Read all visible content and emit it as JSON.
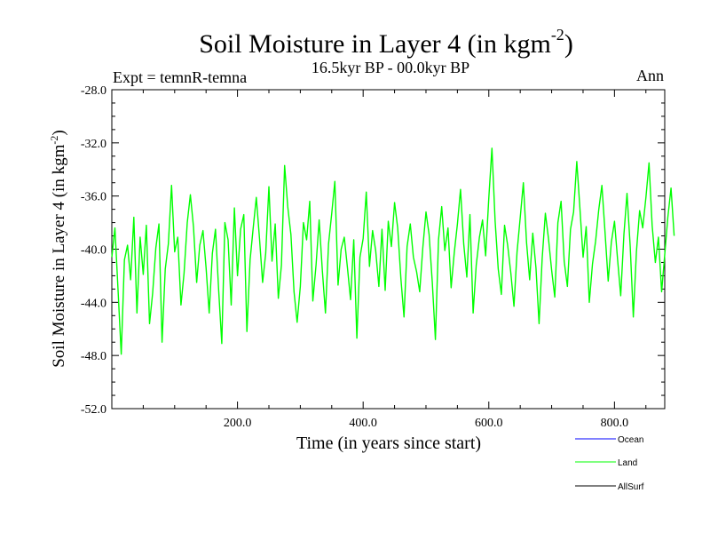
{
  "header": {
    "title": "Soil Moisture in Layer 4 (in kgm",
    "title_sup": "-2",
    "title_close": ")",
    "subtitle": "16.5kyr BP - 00.0kyr BP",
    "experiment": "Expt = temnR-temna",
    "season": "Ann"
  },
  "colors": {
    "ocean": "#0000ff",
    "land": "#00ff00",
    "allsurf": "#000000"
  },
  "chart_data": {
    "type": "line",
    "title": "Soil Moisture in Layer 4 (in kgm-2)",
    "xlabel": "Time (in years since start)",
    "ylabel": "Soil Moisture in Layer 4 (in kgm-2)",
    "xlim": [
      0,
      880
    ],
    "ylim": [
      -52,
      -28
    ],
    "x_ticks": [
      200,
      400,
      600,
      800
    ],
    "x_tick_labels": [
      "200.0",
      "400.0",
      "600.0",
      "800.0"
    ],
    "y_ticks": [
      -28,
      -32,
      -36,
      -40,
      -44,
      -48,
      -52
    ],
    "y_tick_labels": [
      "-28.0",
      "-32.0",
      "-36.0",
      "-40.0",
      "-44.0",
      "-48.0",
      "-52.0"
    ],
    "legend_position": "bottom-right",
    "legend": [
      "Ocean",
      "Land",
      "AllSurf"
    ],
    "series": [
      {
        "name": "Land",
        "x_start": 0,
        "x_step": 5,
        "values": [
          -40.6,
          -38.4,
          -43.2,
          -47.9,
          -40.8,
          -39.7,
          -42.3,
          -37.6,
          -44.8,
          -39.1,
          -41.9,
          -38.2,
          -45.6,
          -43.3,
          -39.9,
          -38.1,
          -47.0,
          -41.5,
          -39.6,
          -35.2,
          -40.2,
          -39.1,
          -44.2,
          -41.8,
          -38.0,
          -35.9,
          -38.3,
          -42.5,
          -39.7,
          -38.6,
          -41.4,
          -44.8,
          -40.3,
          -38.5,
          -43.1,
          -47.1,
          -38.0,
          -39.3,
          -44.2,
          -36.9,
          -42.0,
          -38.5,
          -37.4,
          -46.2,
          -40.8,
          -38.4,
          -36.1,
          -39.2,
          -42.5,
          -40.3,
          -35.3,
          -40.9,
          -38.1,
          -43.7,
          -41.2,
          -33.7,
          -36.8,
          -38.9,
          -43.2,
          -45.5,
          -42.8,
          -38.0,
          -39.3,
          -36.4,
          -43.9,
          -41.2,
          -37.8,
          -41.6,
          -44.8,
          -39.6,
          -37.3,
          -34.9,
          -42.7,
          -40.0,
          -39.1,
          -41.4,
          -43.8,
          -39.3,
          -46.7,
          -40.6,
          -39.2,
          -35.7,
          -41.3,
          -38.6,
          -40.1,
          -42.8,
          -38.5,
          -43.1,
          -37.9,
          -39.8,
          -36.5,
          -38.4,
          -42.2,
          -45.1,
          -39.8,
          -38.1,
          -40.6,
          -41.7,
          -43.2,
          -39.9,
          -37.2,
          -38.9,
          -42.5,
          -46.8,
          -39.3,
          -36.8,
          -40.1,
          -38.4,
          -42.9,
          -40.3,
          -38.1,
          -35.5,
          -39.6,
          -42.1,
          -37.4,
          -44.8,
          -41.2,
          -39.1,
          -37.8,
          -40.5,
          -36.1,
          -32.4,
          -37.9,
          -41.5,
          -43.4,
          -38.2,
          -39.7,
          -41.8,
          -44.3,
          -40.2,
          -37.6,
          -35.0,
          -39.5,
          -42.3,
          -38.8,
          -41.4,
          -45.6,
          -40.7,
          -37.3,
          -39.2,
          -41.6,
          -43.6,
          -38.0,
          -36.4,
          -40.9,
          -42.8,
          -38.5,
          -37.2,
          -33.4,
          -36.9,
          -40.6,
          -38.3,
          -44.0,
          -41.1,
          -39.4,
          -37.0,
          -35.2,
          -38.7,
          -42.4,
          -39.5,
          -37.9,
          -40.8,
          -43.5,
          -38.9,
          -35.8,
          -39.8,
          -45.1,
          -40.2,
          -37.1,
          -38.4,
          -36.1,
          -33.5,
          -38.2,
          -41.0,
          -39.1,
          -43.2,
          -40.4,
          -37.6,
          -35.4,
          -39.0
        ]
      }
    ]
  }
}
